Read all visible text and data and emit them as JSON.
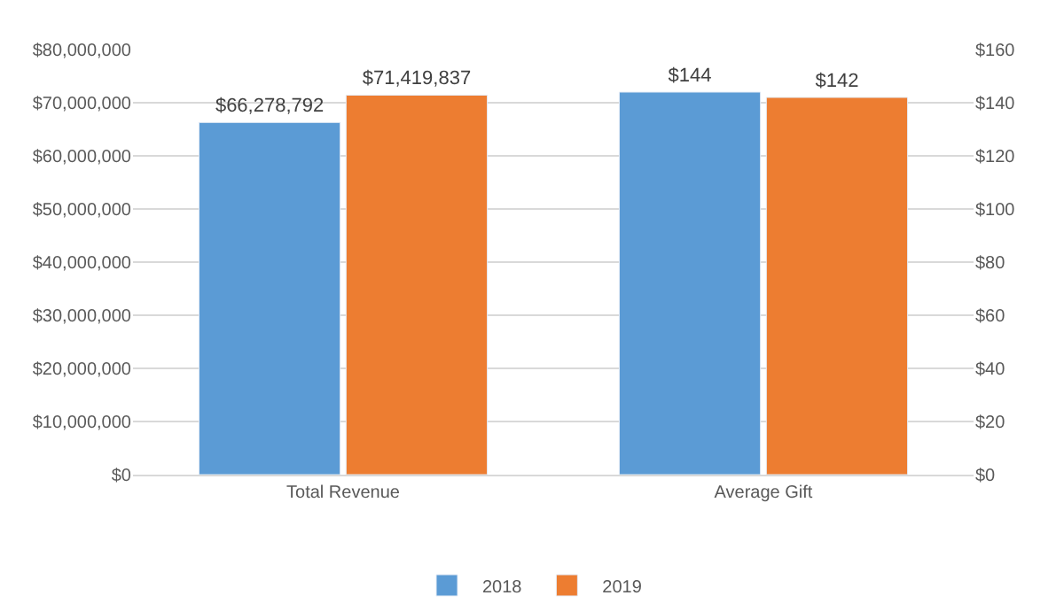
{
  "chart_data": {
    "type": "bar",
    "categories": [
      "Total Revenue",
      "Average Gift"
    ],
    "series": [
      {
        "name": "2018",
        "color": "#5b9bd5",
        "values": [
          66278792,
          null
        ],
        "value_labels": [
          "$66,278,792",
          null
        ]
      },
      {
        "name": "2019",
        "color": "#ed7d31",
        "values": [
          71419837,
          null
        ],
        "value_labels": [
          "$71,419,837",
          null
        ]
      },
      {
        "color": "#5b9bd5",
        "values": [
          null,
          144
        ],
        "value_labels": [
          null,
          "$144"
        ],
        "axis": "y2"
      },
      {
        "color": "#ed7d31",
        "values": [
          null,
          142
        ],
        "value_labels": [
          null,
          "$142"
        ],
        "axis": "y2"
      }
    ],
    "ylim": [
      0,
      80000000
    ],
    "yticks": [
      {
        "value": 0,
        "label": "$0"
      },
      {
        "value": 10000000,
        "label": "$10,000,000"
      },
      {
        "value": 20000000,
        "label": "$20,000,000"
      },
      {
        "value": 30000000,
        "label": "$30,000,000"
      },
      {
        "value": 40000000,
        "label": "$40,000,000"
      },
      {
        "value": 50000000,
        "label": "$50,000,000"
      },
      {
        "value": 60000000,
        "label": "$60,000,000"
      },
      {
        "value": 70000000,
        "label": "$70,000,000"
      },
      {
        "value": 80000000,
        "label": "$80,000,000"
      }
    ],
    "y2lim": [
      0,
      160
    ],
    "y2ticks": [
      {
        "value": 0,
        "label": "$0"
      },
      {
        "value": 20,
        "label": "$20"
      },
      {
        "value": 40,
        "label": "$40"
      },
      {
        "value": 60,
        "label": "$60"
      },
      {
        "value": 80,
        "label": "$80"
      },
      {
        "value": 100,
        "label": "$100"
      },
      {
        "value": 120,
        "label": "$120"
      },
      {
        "value": 140,
        "label": "$140"
      },
      {
        "value": 160,
        "label": "$160"
      }
    ],
    "grid": "y",
    "legend": "bottom"
  }
}
